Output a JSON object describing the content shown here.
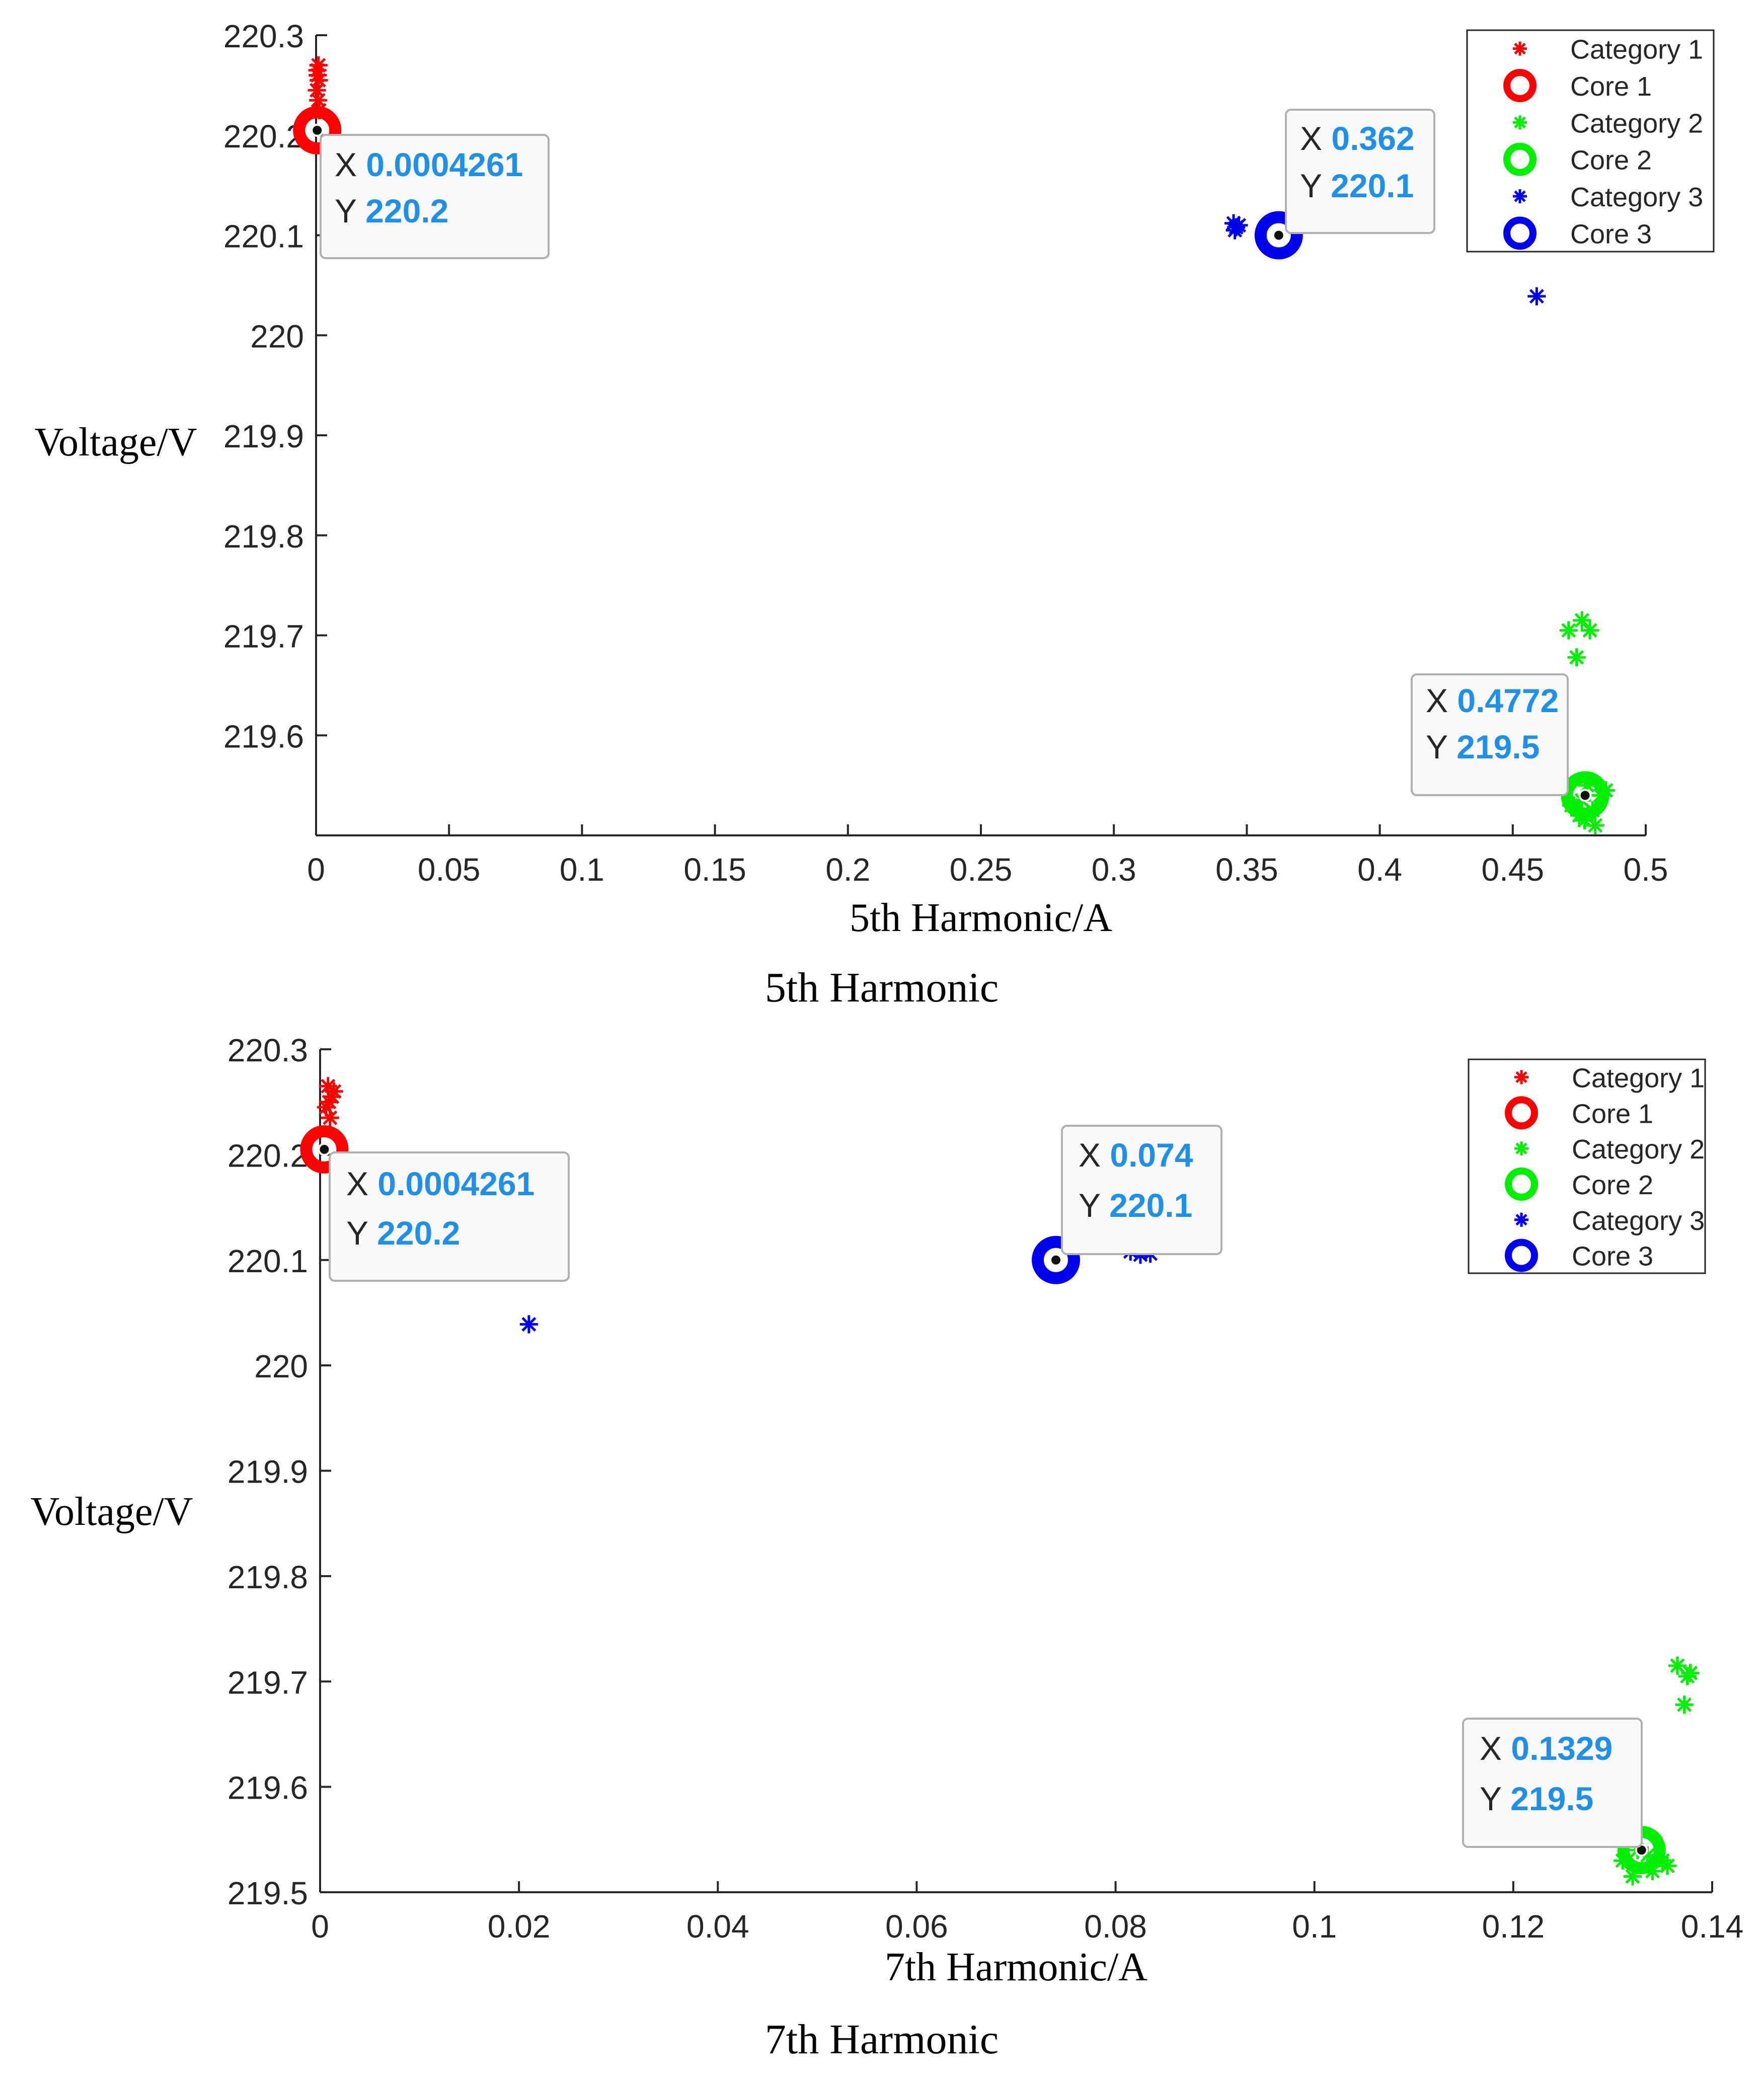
{
  "chart_data": [
    {
      "type": "scatter",
      "title": "5th Harmonic",
      "xlabel": "5th Harmonic/A",
      "ylabel": "Voltage/V",
      "xlim": [
        0,
        0.5
      ],
      "ylim": [
        219.5,
        220.3
      ],
      "xticks": [
        "0",
        "0.05",
        "0.1",
        "0.15",
        "0.2",
        "0.25",
        "0.3",
        "0.35",
        "0.4",
        "0.45",
        "0.5"
      ],
      "yticks": [
        "219.6",
        "219.7",
        "219.8",
        "219.9",
        "220",
        "220.1",
        "220.2",
        "220.3"
      ],
      "legend_position": "top-right",
      "series": [
        {
          "name": "Category 1",
          "kind": "points",
          "color": "#ff0000",
          "x": [
            0.0005,
            0.001,
            0.0003,
            0.0008,
            0.0012,
            0.0006,
            0.0009
          ],
          "y": [
            220.265,
            220.255,
            220.245,
            220.235,
            220.225,
            220.26,
            220.27
          ]
        },
        {
          "name": "Core 1",
          "kind": "core",
          "color": "#ff0000",
          "x": [
            0.0004261
          ],
          "y": [
            220.205
          ]
        },
        {
          "name": "Category 2",
          "kind": "points",
          "color": "#00ee00",
          "x": [
            0.471,
            0.476,
            0.479,
            0.474,
            0.473,
            0.475,
            0.478,
            0.481,
            0.483,
            0.476,
            0.48,
            0.485,
            0.472,
            0.477
          ],
          "y": [
            219.705,
            219.715,
            219.705,
            219.678,
            219.53,
            219.52,
            219.55,
            219.51,
            219.54,
            219.535,
            219.525,
            219.545,
            219.53,
            219.515
          ]
        },
        {
          "name": "Core 2",
          "kind": "core",
          "color": "#00ee00",
          "x": [
            0.4772
          ],
          "y": [
            219.54
          ]
        },
        {
          "name": "Category 3",
          "kind": "points",
          "color": "#0000ee",
          "x": [
            0.345,
            0.346,
            0.347,
            0.3455,
            0.459
          ],
          "y": [
            220.112,
            220.108,
            220.11,
            220.105,
            220.039
          ]
        },
        {
          "name": "Core 3",
          "kind": "core",
          "color": "#0000ee",
          "x": [
            0.362
          ],
          "y": [
            220.1
          ]
        }
      ],
      "annotations": [
        {
          "x_label": "X",
          "x_value": "0.0004261",
          "y_label": "Y",
          "y_value": "220.2"
        },
        {
          "x_label": "X",
          "x_value": "0.362",
          "y_label": "Y",
          "y_value": "220.1"
        },
        {
          "x_label": "X",
          "x_value": "0.4772",
          "y_label": "Y",
          "y_value": "219.5"
        }
      ]
    },
    {
      "type": "scatter",
      "title": "7th Harmonic",
      "xlabel": "7th Harmonic/A",
      "ylabel": "Voltage/V",
      "xlim": [
        0,
        0.14
      ],
      "ylim": [
        219.5,
        220.3
      ],
      "xticks": [
        "0",
        "0.02",
        "0.04",
        "0.06",
        "0.08",
        "0.1",
        "0.12",
        "0.14"
      ],
      "yticks": [
        "219.5",
        "219.6",
        "219.7",
        "219.8",
        "219.9",
        "220",
        "220.1",
        "220.2",
        "220.3"
      ],
      "legend_position": "top-right",
      "series": [
        {
          "name": "Category 1",
          "kind": "points",
          "color": "#ff0000",
          "x": [
            0.0008,
            0.0012,
            0.0006,
            0.001,
            0.0014,
            0.0009
          ],
          "y": [
            220.265,
            220.255,
            220.245,
            220.235,
            220.26,
            220.25
          ]
        },
        {
          "name": "Core 1",
          "kind": "core",
          "color": "#ff0000",
          "x": [
            0.0004261
          ],
          "y": [
            220.205
          ]
        },
        {
          "name": "Category 2",
          "kind": "points",
          "color": "#00ee00",
          "x": [
            0.1365,
            0.1375,
            0.1378,
            0.1372,
            0.131,
            0.134,
            0.1335,
            0.1355,
            0.132,
            0.1325,
            0.135
          ],
          "y": [
            219.715,
            219.705,
            219.708,
            219.678,
            219.53,
            219.52,
            219.535,
            219.525,
            219.515,
            219.54,
            219.53
          ]
        },
        {
          "name": "Core 2",
          "kind": "core",
          "color": "#00ee00",
          "x": [
            0.1329
          ],
          "y": [
            219.54
          ]
        },
        {
          "name": "Category 3",
          "kind": "points",
          "color": "#0000ee",
          "x": [
            0.021,
            0.0815,
            0.0825,
            0.083,
            0.0835
          ],
          "y": [
            220.039,
            220.108,
            220.105,
            220.11,
            220.106
          ]
        },
        {
          "name": "Core 3",
          "kind": "core",
          "color": "#0000ee",
          "x": [
            0.074
          ],
          "y": [
            220.1
          ]
        }
      ],
      "annotations": [
        {
          "x_label": "X",
          "x_value": "0.0004261",
          "y_label": "Y",
          "y_value": "220.2"
        },
        {
          "x_label": "X",
          "x_value": "0.074",
          "y_label": "Y",
          "y_value": "220.1"
        },
        {
          "x_label": "X",
          "x_value": "0.1329",
          "y_label": "Y",
          "y_value": "219.5"
        }
      ]
    }
  ]
}
